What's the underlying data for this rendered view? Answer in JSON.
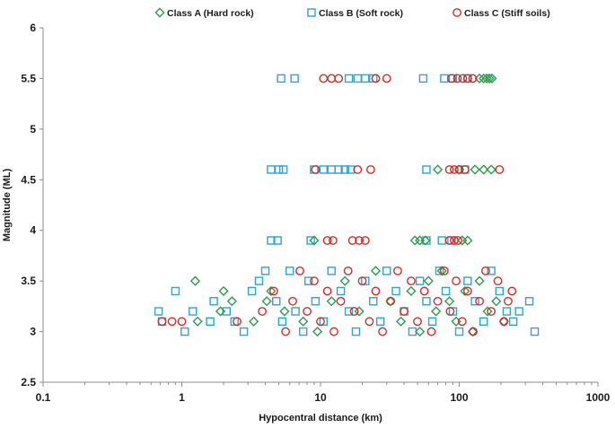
{
  "chart_data": {
    "type": "scatter",
    "title": "",
    "xlabel": "Hypocentral distance (km)",
    "ylabel": "Magnitude (ML)",
    "xscale": "log",
    "xlim": [
      0.1,
      1000
    ],
    "ylim": [
      2.5,
      6
    ],
    "xticks": [
      0.1,
      1,
      10,
      100,
      1000
    ],
    "xtick_labels": [
      "0.1",
      "1",
      "10",
      "100",
      "1000"
    ],
    "yticks": [
      2.5,
      3,
      3.5,
      4,
      4.5,
      5,
      5.5,
      6
    ],
    "ytick_labels": [
      "2.5",
      "3",
      "3.5",
      "4",
      "4.5",
      "5",
      "5.5",
      "6"
    ],
    "grid": false,
    "legend_position": "top",
    "series": [
      {
        "name": "Class A (Hard rock)",
        "marker": "diamond",
        "color": "#2e9a4e",
        "points": [
          [
            1.25,
            3.5
          ],
          [
            1.3,
            3.1
          ],
          [
            1.9,
            3.2
          ],
          [
            2.0,
            3.4
          ],
          [
            2.3,
            3.3
          ],
          [
            3.3,
            3.1
          ],
          [
            4.1,
            3.3
          ],
          [
            4.4,
            3.4
          ],
          [
            5.5,
            3.2
          ],
          [
            7.5,
            3.1
          ],
          [
            9.5,
            3.0
          ],
          [
            12,
            3.3
          ],
          [
            15,
            3.5
          ],
          [
            19,
            3.2
          ],
          [
            25,
            3.6
          ],
          [
            32,
            3.3
          ],
          [
            38,
            3.1
          ],
          [
            45,
            3.4
          ],
          [
            52,
            3.0
          ],
          [
            60,
            3.5
          ],
          [
            68,
            3.2
          ],
          [
            75,
            3.6
          ],
          [
            85,
            3.3
          ],
          [
            95,
            3.1
          ],
          [
            110,
            3.4
          ],
          [
            125,
            3.0
          ],
          [
            140,
            3.5
          ],
          [
            160,
            3.2
          ],
          [
            185,
            3.3
          ],
          [
            210,
            3.1
          ],
          [
            9.0,
            3.9
          ],
          [
            48,
            3.9
          ],
          [
            52,
            3.9
          ],
          [
            57,
            3.9
          ],
          [
            105,
            3.9
          ],
          [
            115,
            3.9
          ],
          [
            70,
            4.6
          ],
          [
            100,
            4.6
          ],
          [
            130,
            4.6
          ],
          [
            150,
            4.6
          ],
          [
            170,
            4.6
          ],
          [
            140,
            5.5
          ],
          [
            150,
            5.5
          ],
          [
            158,
            5.5
          ],
          [
            165,
            5.5
          ],
          [
            172,
            5.5
          ]
        ]
      },
      {
        "name": "Class B (Soft rock)",
        "marker": "square",
        "color": "#2aa6cf",
        "points": [
          [
            0.68,
            3.2
          ],
          [
            0.72,
            3.1
          ],
          [
            0.9,
            3.4
          ],
          [
            1.05,
            3.0
          ],
          [
            1.2,
            3.2
          ],
          [
            1.6,
            3.1
          ],
          [
            1.7,
            3.3
          ],
          [
            2.1,
            3.2
          ],
          [
            2.4,
            3.1
          ],
          [
            2.8,
            3.0
          ],
          [
            3.2,
            3.4
          ],
          [
            3.6,
            3.5
          ],
          [
            4.0,
            3.6
          ],
          [
            4.8,
            3.3
          ],
          [
            5.3,
            3.1
          ],
          [
            6.0,
            3.6
          ],
          [
            6.6,
            3.2
          ],
          [
            7.5,
            3.0
          ],
          [
            8.2,
            3.5
          ],
          [
            9.2,
            3.3
          ],
          [
            10.5,
            3.1
          ],
          [
            12,
            3.6
          ],
          [
            14,
            3.4
          ],
          [
            16,
            3.2
          ],
          [
            18,
            3.0
          ],
          [
            21,
            3.5
          ],
          [
            24,
            3.3
          ],
          [
            27,
            3.1
          ],
          [
            30,
            3.6
          ],
          [
            35,
            3.4
          ],
          [
            40,
            3.2
          ],
          [
            46,
            3.0
          ],
          [
            52,
            3.5
          ],
          [
            58,
            3.3
          ],
          [
            64,
            3.1
          ],
          [
            72,
            3.6
          ],
          [
            80,
            3.4
          ],
          [
            90,
            3.2
          ],
          [
            100,
            3.0
          ],
          [
            115,
            3.5
          ],
          [
            130,
            3.3
          ],
          [
            150,
            3.1
          ],
          [
            170,
            3.6
          ],
          [
            195,
            3.4
          ],
          [
            220,
            3.2
          ],
          [
            245,
            3.1
          ],
          [
            270,
            3.2
          ],
          [
            320,
            3.3
          ],
          [
            350,
            3.0
          ],
          [
            4.4,
            3.9
          ],
          [
            4.9,
            3.9
          ],
          [
            8.5,
            3.9
          ],
          [
            58,
            3.9
          ],
          [
            75,
            3.9
          ],
          [
            88,
            3.9
          ],
          [
            4.4,
            4.6
          ],
          [
            5.0,
            4.6
          ],
          [
            5.4,
            4.6
          ],
          [
            9.0,
            4.6
          ],
          [
            10.5,
            4.6
          ],
          [
            12,
            4.6
          ],
          [
            13.5,
            4.6
          ],
          [
            15,
            4.6
          ],
          [
            16.5,
            4.6
          ],
          [
            58,
            4.6
          ],
          [
            110,
            4.6
          ],
          [
            5.2,
            5.5
          ],
          [
            6.5,
            5.5
          ],
          [
            16,
            5.5
          ],
          [
            18.5,
            5.5
          ],
          [
            21,
            5.5
          ],
          [
            24,
            5.5
          ],
          [
            55,
            5.5
          ],
          [
            78,
            5.5
          ],
          [
            90,
            5.5
          ],
          [
            115,
            5.5
          ]
        ]
      },
      {
        "name": "Class C (Stiff soils)",
        "marker": "circle",
        "color": "#d42b2b",
        "points": [
          [
            0.72,
            3.1
          ],
          [
            0.85,
            3.1
          ],
          [
            1.0,
            3.1
          ],
          [
            2.5,
            3.1
          ],
          [
            3.8,
            3.2
          ],
          [
            4.6,
            3.4
          ],
          [
            5.6,
            3.0
          ],
          [
            6.3,
            3.3
          ],
          [
            7.1,
            3.6
          ],
          [
            8.0,
            3.2
          ],
          [
            9.0,
            3.5
          ],
          [
            10,
            3.1
          ],
          [
            11.2,
            3.4
          ],
          [
            12.5,
            3.0
          ],
          [
            14,
            3.3
          ],
          [
            15.8,
            3.6
          ],
          [
            17.5,
            3.2
          ],
          [
            20,
            3.5
          ],
          [
            22.5,
            3.1
          ],
          [
            25,
            3.4
          ],
          [
            28,
            3.0
          ],
          [
            32,
            3.3
          ],
          [
            36,
            3.6
          ],
          [
            40,
            3.2
          ],
          [
            45,
            3.5
          ],
          [
            50,
            3.1
          ],
          [
            56,
            3.4
          ],
          [
            63,
            3.0
          ],
          [
            70,
            3.3
          ],
          [
            78,
            3.6
          ],
          [
            86,
            3.2
          ],
          [
            95,
            3.5
          ],
          [
            105,
            3.1
          ],
          [
            115,
            3.4
          ],
          [
            126,
            3.0
          ],
          [
            140,
            3.3
          ],
          [
            155,
            3.6
          ],
          [
            170,
            3.2
          ],
          [
            190,
            3.5
          ],
          [
            210,
            3.1
          ],
          [
            225,
            3.3
          ],
          [
            240,
            3.4
          ],
          [
            11.2,
            3.9
          ],
          [
            12.3,
            3.9
          ],
          [
            17,
            3.9
          ],
          [
            19,
            3.9
          ],
          [
            21,
            3.9
          ],
          [
            85,
            3.9
          ],
          [
            92,
            3.9
          ],
          [
            98,
            3.9
          ],
          [
            9.2,
            4.6
          ],
          [
            18.5,
            4.6
          ],
          [
            23,
            4.6
          ],
          [
            85,
            4.6
          ],
          [
            92,
            4.6
          ],
          [
            100,
            4.6
          ],
          [
            110,
            4.6
          ],
          [
            195,
            4.6
          ],
          [
            10.5,
            5.5
          ],
          [
            12,
            5.5
          ],
          [
            13.5,
            5.5
          ],
          [
            25,
            5.5
          ],
          [
            30,
            5.5
          ],
          [
            88,
            5.5
          ],
          [
            97,
            5.5
          ],
          [
            106,
            5.5
          ],
          [
            115,
            5.5
          ],
          [
            125,
            5.5
          ]
        ]
      }
    ]
  }
}
